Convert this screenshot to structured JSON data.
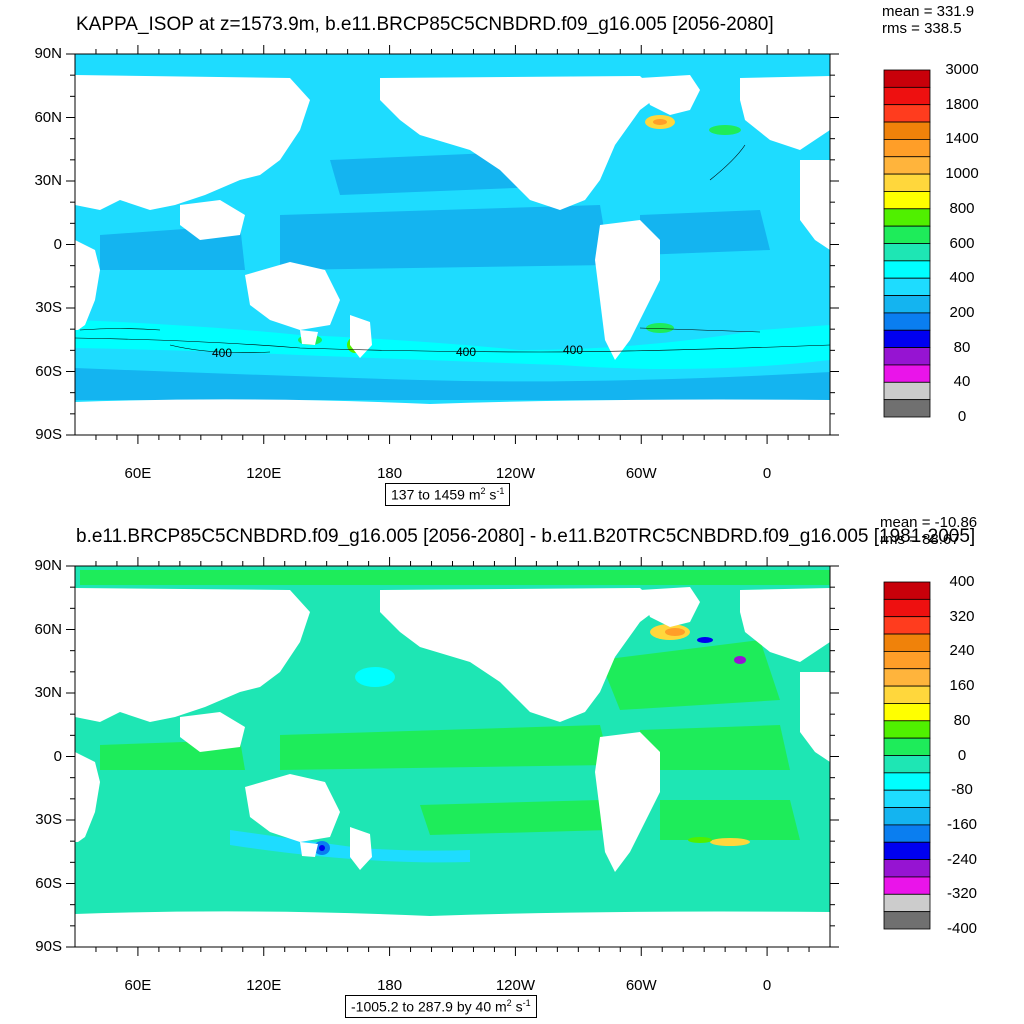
{
  "panels": [
    {
      "title": "KAPPA_ISOP at z=1573.9m, b.e11.BRCP85C5CNBDRD.f09_g16.005 [2056-2080]",
      "stats": [
        "mean = 331.9",
        "rms = 338.5"
      ],
      "range_text": "137 to 1459",
      "units": "m",
      "units_exp1": "2",
      "units_mid": " s",
      "units_exp2": "-1",
      "lat_labels": [
        "90N",
        "60N",
        "30N",
        "0",
        "30S",
        "60S",
        "90S"
      ],
      "lon_labels": [
        "60E",
        "120E",
        "180",
        "120W",
        "60W",
        "0"
      ],
      "colorbar_labels": [
        "3000",
        "1800",
        "1400",
        "1000",
        "800",
        "600",
        "400",
        "200",
        "80",
        "40",
        "0"
      ],
      "colorbar_colors": [
        "#c8000a",
        "#ee1010",
        "#ff3c1e",
        "#f0820a",
        "#ff9e28",
        "#ffb43c",
        "#ffd73c",
        "#ffff00",
        "#50f000",
        "#1eec5a",
        "#1ee6b4",
        "#00ffff",
        "#1edcff",
        "#14b4f0",
        "#0a7ef0",
        "#0000f0",
        "#9614d2",
        "#ea14ea",
        "#cccccc",
        "#707070"
      ],
      "contour_labels": [
        "400",
        "400",
        "400"
      ],
      "background_color": "#1edcff"
    },
    {
      "title": "b.e11.BRCP85C5CNBDRD.f09_g16.005 [2056-2080] - b.e11.B20TRC5CNBDRD.f09_g16.005 [1981-2005]",
      "stats": [
        "mean = -10.86",
        "rms = 88.67"
      ],
      "range_text": "-1005.2 to 287.9 by 40",
      "units": "m",
      "units_exp1": "2",
      "units_mid": " s",
      "units_exp2": "-1",
      "lat_labels": [
        "90N",
        "60N",
        "30N",
        "0",
        "30S",
        "60S",
        "90S"
      ],
      "lon_labels": [
        "60E",
        "120E",
        "180",
        "120W",
        "60W",
        "0"
      ],
      "colorbar_labels": [
        "400",
        "320",
        "240",
        "160",
        "80",
        "0",
        "-80",
        "-160",
        "-240",
        "-320",
        "-400"
      ],
      "colorbar_colors": [
        "#c8000a",
        "#ee1010",
        "#ff3c1e",
        "#f0820a",
        "#ff9e28",
        "#ffb43c",
        "#ffd73c",
        "#ffff00",
        "#50f000",
        "#1eec5a",
        "#1ee6b4",
        "#00ffff",
        "#1edcff",
        "#14b4f0",
        "#0a7ef0",
        "#0000f0",
        "#9614d2",
        "#ea14ea",
        "#cccccc",
        "#707070"
      ],
      "background_color": "#1ee6b4"
    }
  ]
}
